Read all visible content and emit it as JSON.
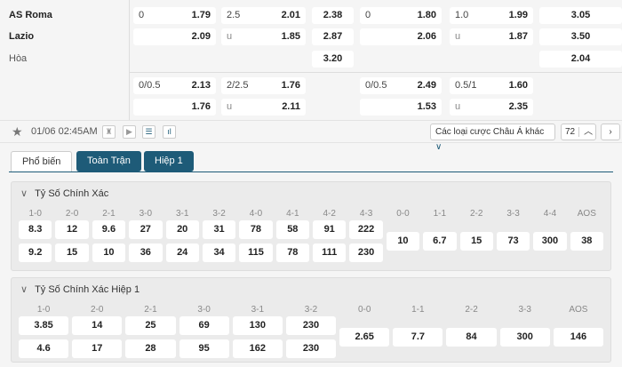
{
  "teams": {
    "home": "AS Roma",
    "away": "Lazio",
    "draw": "Hòa"
  },
  "odds_main": {
    "hdp_ft": {
      "line": "0",
      "home": "1.79",
      "away": "2.09"
    },
    "ou_ft": {
      "line": "2.5",
      "over": "2.01",
      "u": "u",
      "under": "1.85"
    },
    "x12_ft": {
      "home": "2.38",
      "away": "2.87",
      "draw": "3.20"
    },
    "hdp_h1": {
      "line": "0",
      "home": "1.80",
      "away": "2.06"
    },
    "ou_h1": {
      "line": "1.0",
      "over": "1.99",
      "u": "u",
      "under": "1.87"
    },
    "x12_h1": {
      "home": "3.05",
      "away": "3.50",
      "draw": "2.04"
    }
  },
  "odds_alt": {
    "hdp_ft": {
      "line": "0/0.5",
      "home": "2.13",
      "away": "1.76"
    },
    "ou_ft": {
      "line": "2/2.5",
      "over": "1.76",
      "u": "u",
      "under": "2.11"
    },
    "hdp_h1": {
      "line": "0/0.5",
      "home": "2.49",
      "away": "1.53"
    },
    "ou_h1": {
      "line": "0.5/1",
      "over": "1.60",
      "u": "u",
      "under": "2.35"
    }
  },
  "toolbar": {
    "datetime": "01/06 02:45AM",
    "market_select": "Các loại cược Châu Á khác",
    "count": "72",
    "icons": [
      "star-icon",
      "shirt-icon",
      "play-icon",
      "list-icon",
      "stats-icon",
      "chevron-up-icon",
      "chevron-right-icon"
    ]
  },
  "tabs": [
    "Phổ biến",
    "Toàn Trận",
    "Hiệp 1"
  ],
  "correct_score": {
    "title": "Tỷ Số Chính Xác",
    "labels": [
      "1-0",
      "2-0",
      "2-1",
      "3-0",
      "3-1",
      "3-2",
      "4-0",
      "4-1",
      "4-2",
      "4-3",
      "0-0",
      "1-1",
      "2-2",
      "3-3",
      "4-4",
      "AOS"
    ],
    "home": [
      "8.3",
      "12",
      "9.6",
      "27",
      "20",
      "31",
      "78",
      "58",
      "91",
      "222"
    ],
    "away": [
      "9.2",
      "15",
      "10",
      "36",
      "24",
      "34",
      "115",
      "78",
      "111",
      "230"
    ],
    "single": [
      "10",
      "6.7",
      "15",
      "73",
      "300",
      "38"
    ]
  },
  "correct_score_h1": {
    "title": "Tỷ Số Chính Xác Hiệp 1",
    "labels": [
      "1-0",
      "2-0",
      "2-1",
      "3-0",
      "3-1",
      "3-2",
      "0-0",
      "1-1",
      "2-2",
      "3-3",
      "AOS"
    ],
    "home": [
      "3.85",
      "14",
      "25",
      "69",
      "130",
      "230"
    ],
    "away": [
      "4.6",
      "17",
      "28",
      "95",
      "162",
      "230"
    ],
    "single": [
      "2.65",
      "7.7",
      "84",
      "300",
      "146"
    ]
  },
  "colors": {
    "tab_active_bg": "#1e5b78",
    "background": "#f5f5f5"
  }
}
